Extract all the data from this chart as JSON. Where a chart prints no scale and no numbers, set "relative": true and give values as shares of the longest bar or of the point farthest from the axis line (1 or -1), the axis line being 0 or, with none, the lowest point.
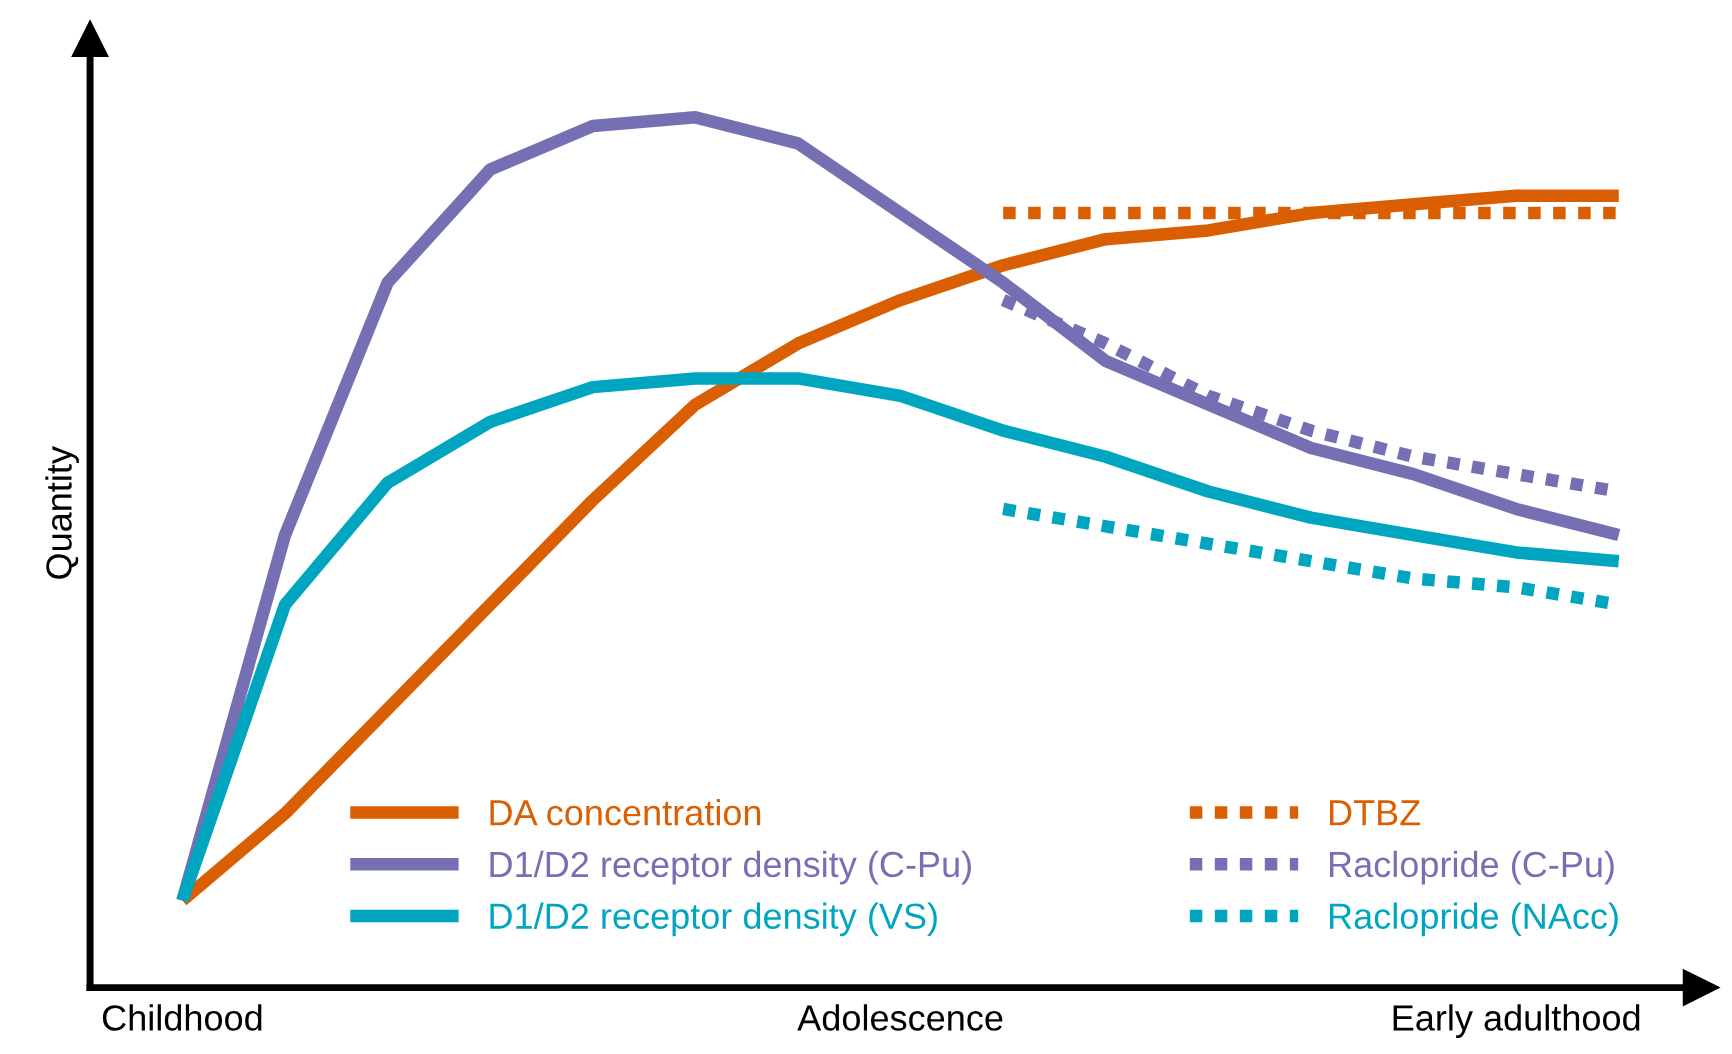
{
  "chart_data": {
    "type": "line",
    "relative": true,
    "ylabel": "Quantity",
    "categories": [
      "Childhood",
      null,
      null,
      null,
      null,
      null,
      null,
      "Adolescence",
      null,
      null,
      null,
      null,
      null,
      "Early adulthood",
      null
    ],
    "series": [
      {
        "name": "DA concentration",
        "color": "#d95f02",
        "line_style": "solid",
        "values": [
          0.1,
          0.2,
          0.32,
          0.44,
          0.56,
          0.67,
          0.74,
          0.79,
          0.83,
          0.86,
          0.87,
          0.89,
          0.9,
          0.91,
          0.91
        ]
      },
      {
        "name": "D1/D2 receptor density (C-Pu)",
        "color": "#7570b3",
        "line_style": "solid",
        "values": [
          0.1,
          0.52,
          0.81,
          0.94,
          0.99,
          1.0,
          0.97,
          0.89,
          0.81,
          0.72,
          0.67,
          0.62,
          0.59,
          0.55,
          0.52
        ]
      },
      {
        "name": "D1/D2 receptor density (VS)",
        "color": "#00a6c0",
        "line_style": "solid",
        "values": [
          0.1,
          0.44,
          0.58,
          0.65,
          0.69,
          0.7,
          0.7,
          0.68,
          0.64,
          0.61,
          0.57,
          0.54,
          0.52,
          0.5,
          0.49
        ]
      },
      {
        "name": "DTBZ",
        "color": "#d95f02",
        "line_style": "dotted",
        "values": [
          null,
          null,
          null,
          null,
          null,
          null,
          null,
          null,
          0.89,
          0.89,
          0.89,
          0.89,
          0.89,
          0.89,
          0.89
        ]
      },
      {
        "name": "Raclopride (C-Pu)",
        "color": "#7570b3",
        "line_style": "dotted",
        "values": [
          null,
          null,
          null,
          null,
          null,
          null,
          null,
          null,
          0.79,
          0.74,
          0.68,
          0.64,
          0.61,
          0.59,
          0.57
        ]
      },
      {
        "name": "Raclopride (NAcc)",
        "color": "#00a6c0",
        "line_style": "dotted",
        "values": [
          null,
          null,
          null,
          null,
          null,
          null,
          null,
          null,
          0.55,
          0.53,
          0.51,
          0.49,
          0.47,
          0.46,
          0.44
        ]
      }
    ],
    "legend": "bottom right",
    "grid": false,
    "marker": "none"
  }
}
